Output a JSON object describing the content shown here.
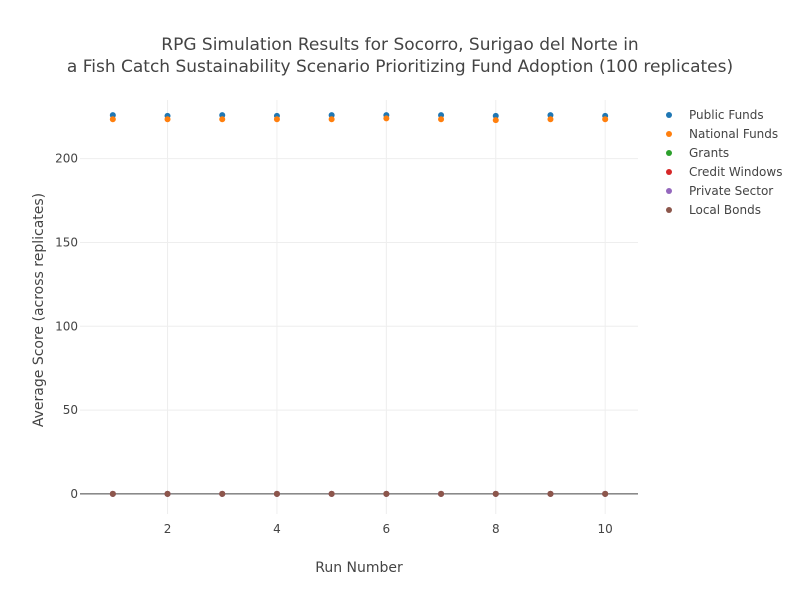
{
  "chart_data": {
    "type": "scatter",
    "title_lines": [
      "RPG Simulation Results for Socorro, Surigao del Norte in",
      "a Fish Catch Sustainability Scenario Prioritizing Fund Adoption (100 replicates)"
    ],
    "xlabel": "Run Number",
    "ylabel": "Average Score (across replicates)",
    "x": [
      1,
      2,
      3,
      4,
      5,
      6,
      7,
      8,
      9,
      10
    ],
    "xlim": [
      0.4,
      10.6
    ],
    "ylim": [
      -12,
      235
    ],
    "xticks": [
      2,
      4,
      6,
      8,
      10
    ],
    "yticks": [
      0,
      50,
      100,
      150,
      200
    ],
    "grid": true,
    "legend_position": "top-right",
    "series": [
      {
        "name": "Public Funds",
        "color": "#1f77b4",
        "values": [
          226,
          225.5,
          226,
          225.5,
          226,
          226,
          226,
          225.5,
          226,
          225.5
        ]
      },
      {
        "name": "National Funds",
        "color": "#ff7f0e",
        "values": [
          223.5,
          223.5,
          223.5,
          223.5,
          223.5,
          224,
          223.5,
          223,
          223.5,
          223.5
        ]
      },
      {
        "name": "Grants",
        "color": "#2ca02c",
        "values": [
          0,
          0,
          0,
          0,
          0,
          0,
          0,
          0,
          0,
          0
        ]
      },
      {
        "name": "Credit Windows",
        "color": "#d62728",
        "values": [
          0,
          0,
          0,
          0,
          0,
          0,
          0,
          0,
          0,
          0
        ]
      },
      {
        "name": "Private Sector",
        "color": "#9467bd",
        "values": [
          0,
          0,
          0,
          0,
          0,
          0,
          0,
          0,
          0,
          0
        ]
      },
      {
        "name": "Local Bonds",
        "color": "#8c564b",
        "values": [
          0,
          0,
          0,
          0,
          0,
          0,
          0,
          0,
          0,
          0
        ]
      }
    ]
  }
}
